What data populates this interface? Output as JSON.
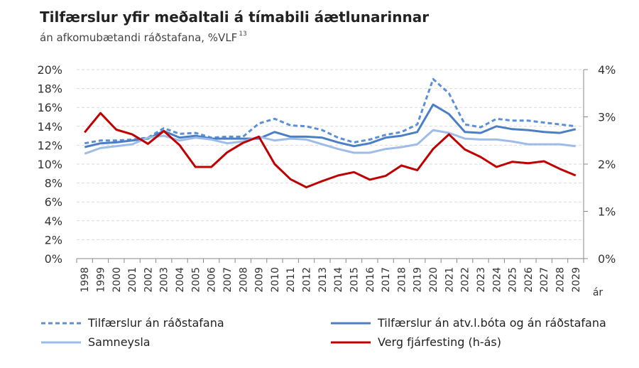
{
  "chart_data": {
    "type": "line",
    "title": "Tilfærslur yfir meðaltali á tímabili áætlunarinnar",
    "subtitle": "án afkomubætandi ráðstafana, %VLF",
    "subtitle_note": "13",
    "xlabel": "ár",
    "ylim": [
      0,
      20
    ],
    "y2lim": [
      0,
      4
    ],
    "yticks": [
      "0%",
      "2%",
      "4%",
      "6%",
      "8%",
      "10%",
      "12%",
      "14%",
      "16%",
      "18%",
      "20%"
    ],
    "y2ticks": [
      "0%",
      "1%",
      "2%",
      "3%",
      "4%"
    ],
    "x": [
      1998,
      1999,
      2000,
      2001,
      2002,
      2003,
      2004,
      2005,
      2006,
      2007,
      2008,
      2009,
      2010,
      2011,
      2012,
      2013,
      2014,
      2015,
      2016,
      2017,
      2018,
      2019,
      2020,
      2021,
      2022,
      2023,
      2024,
      2025,
      2026,
      2027,
      2028,
      2029
    ],
    "grid": true,
    "legend_position": "bottom",
    "series": [
      {
        "name": "Tilfærslur án ráðstafana",
        "axis": "left",
        "style": "dashed",
        "color": "#5b8fd6",
        "values": [
          12.2,
          12.5,
          12.5,
          12.6,
          12.8,
          13.8,
          13.2,
          13.3,
          12.8,
          12.9,
          12.9,
          14.3,
          14.8,
          14.1,
          14.0,
          13.6,
          12.8,
          12.3,
          12.6,
          13.1,
          13.4,
          14.2,
          19.0,
          17.5,
          14.2,
          13.9,
          14.8,
          14.6,
          14.6,
          14.4,
          14.2,
          14.0
        ]
      },
      {
        "name": "Tilfærslur án atv.l.bóta og án ráðstafana",
        "axis": "left",
        "style": "solid",
        "color": "#4a7fc8",
        "values": [
          11.8,
          12.2,
          12.3,
          12.5,
          12.7,
          13.5,
          12.8,
          13.0,
          12.7,
          12.7,
          12.7,
          12.7,
          13.4,
          12.9,
          12.9,
          12.8,
          12.3,
          11.9,
          12.2,
          12.8,
          13.0,
          13.4,
          16.3,
          15.3,
          13.4,
          13.3,
          14.0,
          13.7,
          13.6,
          13.4,
          13.3,
          13.7
        ]
      },
      {
        "name": "Samneysla",
        "axis": "left",
        "style": "solid",
        "color": "#9dbde8",
        "values": [
          11.1,
          11.7,
          11.9,
          12.1,
          12.8,
          13.0,
          12.5,
          12.8,
          12.6,
          12.2,
          12.4,
          12.9,
          12.5,
          12.7,
          12.6,
          12.1,
          11.6,
          11.2,
          11.2,
          11.6,
          11.8,
          12.1,
          13.6,
          13.3,
          12.7,
          12.6,
          12.6,
          12.4,
          12.1,
          12.1,
          12.1,
          11.9
        ]
      },
      {
        "name": "Verg fjárfesting (h-ás)",
        "axis": "right",
        "style": "solid",
        "color": "#c00000",
        "values": [
          2.67,
          3.08,
          2.73,
          2.63,
          2.43,
          2.7,
          2.4,
          1.94,
          1.94,
          2.25,
          2.45,
          2.58,
          2.0,
          1.68,
          1.51,
          1.64,
          1.76,
          1.83,
          1.67,
          1.75,
          1.97,
          1.87,
          2.32,
          2.63,
          2.31,
          2.15,
          1.94,
          2.05,
          2.02,
          2.06,
          1.9,
          1.76
        ]
      }
    ]
  }
}
